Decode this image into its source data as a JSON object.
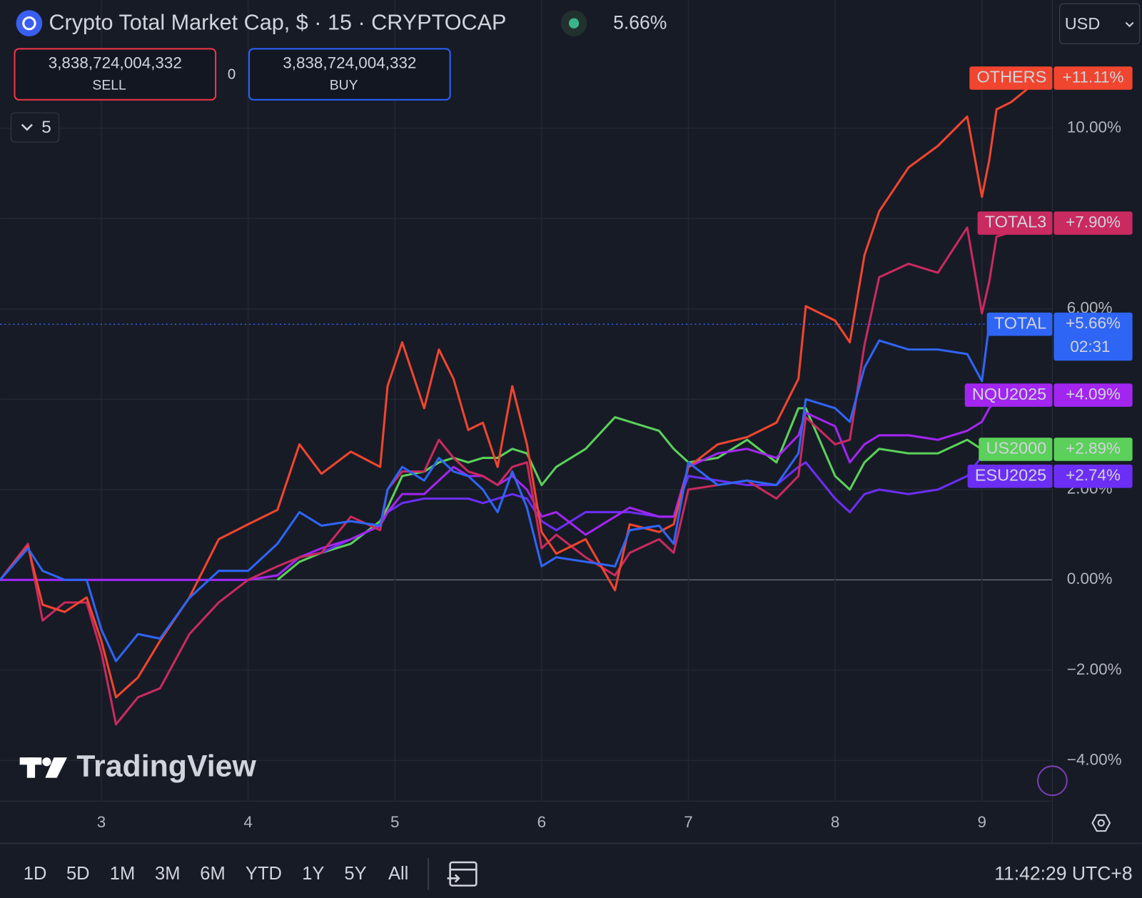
{
  "header": {
    "title": "Crypto Total Market Cap, $ · 15 · CRYPTOCAP",
    "change": "5.66%"
  },
  "trade": {
    "sell_price": "3,838,724,004,332",
    "sell": "SELL",
    "spread": "0",
    "buy_price": "3,838,724,004,332",
    "buy": "BUY"
  },
  "indicators_count": "5",
  "currency": "USD",
  "watermark": "TradingView",
  "range_buttons": [
    "1D",
    "5D",
    "1M",
    "3M",
    "6M",
    "YTD",
    "1Y",
    "5Y",
    "All"
  ],
  "clock": "11:42:29 UTC+8",
  "chart_data": {
    "type": "line",
    "xlim": [
      2.31,
      9.48
    ],
    "xticks": [
      3,
      4,
      5,
      6,
      7,
      8,
      9
    ],
    "ylim": [
      -4.9,
      12.84
    ],
    "yticks": [
      {
        "value": -4,
        "label": "−4.00%"
      },
      {
        "value": -2,
        "label": "−2.00%"
      },
      {
        "value": 0,
        "label": "0.00%"
      },
      {
        "value": 2,
        "label": "2.00%"
      },
      {
        "value": 4,
        "label": "4.00%"
      },
      {
        "value": 6,
        "label": "6.00%"
      },
      {
        "value": 8,
        "label": "8.00%"
      },
      {
        "value": 10,
        "label": "10.00%"
      }
    ],
    "grid": true,
    "x": [
      2.31,
      2.5,
      2.6,
      2.75,
      2.9,
      3.0,
      3.1,
      3.25,
      3.4,
      3.6,
      3.8,
      4.0,
      4.2,
      4.35,
      4.5,
      4.7,
      4.9,
      4.95,
      5.05,
      5.2,
      5.3,
      5.4,
      5.5,
      5.6,
      5.7,
      5.8,
      5.9,
      6.0,
      6.1,
      6.3,
      6.5,
      6.6,
      6.8,
      6.9,
      7.0,
      7.2,
      7.4,
      7.6,
      7.75,
      7.8,
      8.0,
      8.1,
      8.2,
      8.3,
      8.5,
      8.7,
      8.9,
      9.0,
      9.05,
      9.1,
      9.2,
      9.4
    ],
    "series": [
      {
        "name": "OTHERS",
        "color": "#f0452e",
        "badge": {
          "value": 11.11,
          "label": "+11.11%"
        },
        "values": [
          0,
          0.74,
          -0.55,
          -0.71,
          -0.39,
          -1.35,
          -2.6,
          -2.16,
          -1.35,
          -0.39,
          0.9,
          1.23,
          1.55,
          3.0,
          2.35,
          2.84,
          2.5,
          4.29,
          5.26,
          3.8,
          5.1,
          4.45,
          3.32,
          3.48,
          2.5,
          4.29,
          3.0,
          1.06,
          0.58,
          0.9,
          -0.23,
          1.23,
          1.06,
          1.23,
          2.5,
          3.0,
          3.16,
          3.48,
          4.45,
          6.06,
          5.74,
          5.26,
          7.19,
          8.16,
          9.13,
          9.61,
          10.26,
          8.48,
          9.29,
          10.42,
          10.58,
          11.11
        ]
      },
      {
        "name": "TOTAL3",
        "color": "#c92a5f",
        "badge": {
          "value": 7.9,
          "label": "+7.90%"
        },
        "values": [
          0,
          0.8,
          -0.9,
          -0.5,
          -0.5,
          -1.6,
          -3.2,
          -2.6,
          -2.4,
          -1.2,
          -0.5,
          0,
          0.3,
          0.5,
          0.6,
          1.4,
          1.1,
          2.0,
          2.4,
          2.4,
          3.1,
          2.7,
          2.4,
          2.3,
          2.1,
          2.5,
          2.6,
          0.7,
          1.0,
          0.5,
          0.1,
          0.6,
          0.9,
          0.6,
          2.0,
          2.1,
          2.2,
          1.8,
          2.3,
          3.6,
          3.0,
          3.1,
          5.2,
          6.7,
          7.0,
          6.8,
          7.8,
          5.9,
          6.6,
          7.6,
          7.7,
          7.9
        ]
      },
      {
        "name": "TOTAL",
        "color": "#2f65f5",
        "badge": {
          "value": 5.66,
          "label": "+5.66%"
        },
        "countdown": "02:31",
        "price_line": true,
        "values": [
          0,
          0.7,
          0.2,
          0,
          0,
          -1.1,
          -1.8,
          -1.2,
          -1.3,
          -0.4,
          0.2,
          0.2,
          0.8,
          1.5,
          1.2,
          1.3,
          1.2,
          2.0,
          2.5,
          2.2,
          2.7,
          2.4,
          2.3,
          2.0,
          1.5,
          2.4,
          1.6,
          0.3,
          0.5,
          0.4,
          0.3,
          1.1,
          1.2,
          0.8,
          2.6,
          2.1,
          2.2,
          2.1,
          2.8,
          4.0,
          3.8,
          3.5,
          4.7,
          5.3,
          5.1,
          5.1,
          5.0,
          4.4,
          5.66,
          null,
          null,
          null
        ]
      },
      {
        "name": "NQU2025",
        "color": "#a226f0",
        "badge": {
          "value": 4.09,
          "label": "+4.09%"
        },
        "values": [
          0,
          0,
          0,
          0,
          0,
          0,
          0,
          0,
          0,
          0,
          0,
          0,
          0.1,
          0.5,
          0.7,
          0.9,
          1.2,
          1.5,
          1.9,
          1.9,
          2.2,
          2.5,
          2.3,
          2.3,
          2.1,
          2.3,
          2.0,
          1.4,
          1.5,
          1.0,
          1.4,
          1.6,
          1.4,
          1.4,
          2.5,
          2.8,
          2.9,
          2.7,
          3.2,
          3.7,
          3.4,
          2.6,
          3.0,
          3.2,
          3.2,
          3.1,
          3.3,
          3.5,
          3.8,
          4.0,
          4.09,
          null
        ]
      },
      {
        "name": "US2000",
        "color": "#5bd05a",
        "badge": {
          "value": 2.89,
          "label": "+2.89%"
        },
        "values": [
          null,
          null,
          null,
          null,
          null,
          null,
          null,
          null,
          null,
          null,
          null,
          null,
          0,
          0.4,
          0.6,
          0.8,
          1.3,
          1.6,
          2.3,
          2.4,
          2.6,
          2.7,
          2.6,
          2.7,
          2.7,
          2.9,
          2.8,
          2.1,
          2.5,
          2.9,
          3.6,
          3.5,
          3.3,
          2.9,
          2.6,
          2.7,
          3.1,
          2.6,
          3.8,
          3.8,
          2.3,
          2.0,
          2.6,
          2.9,
          2.8,
          2.8,
          3.1,
          2.89,
          null,
          null,
          null,
          null
        ]
      },
      {
        "name": "ESU2025",
        "color": "#6c2ef5",
        "badge": {
          "value": 2.74,
          "label": "+2.74%"
        },
        "values": [
          0,
          0,
          0,
          0,
          0,
          0,
          0,
          0,
          0,
          0,
          0,
          0,
          0.1,
          0.5,
          0.6,
          0.9,
          1.2,
          1.5,
          1.7,
          1.8,
          1.8,
          1.8,
          1.8,
          1.7,
          1.8,
          1.9,
          1.8,
          1.3,
          1.1,
          1.5,
          1.5,
          1.5,
          1.4,
          1.4,
          2.3,
          2.2,
          2.1,
          2.1,
          2.5,
          2.6,
          1.8,
          1.5,
          1.9,
          2.0,
          1.9,
          2.0,
          2.3,
          2.74,
          null,
          null,
          null,
          null
        ]
      }
    ]
  }
}
